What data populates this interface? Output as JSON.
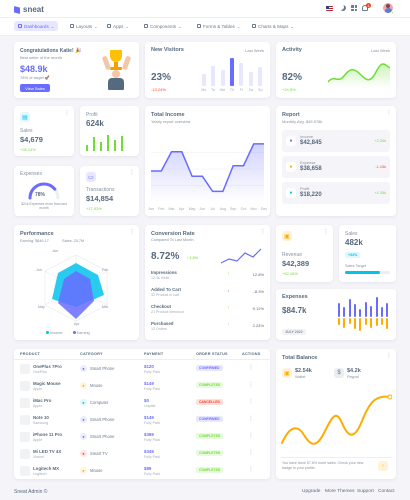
{
  "brand": {
    "name": "sneat"
  },
  "nav": {
    "menu": [
      {
        "label": "Dashboards",
        "active": true
      },
      {
        "label": "Layouts"
      },
      {
        "label": "Apps"
      },
      {
        "label": "Components"
      },
      {
        "label": "Forms & Tables"
      },
      {
        "label": "Charts & Maps"
      }
    ],
    "notification_count": "4"
  },
  "congrats": {
    "title": "Congratulations Katie! 🎉",
    "subtitle": "Best seller of the month",
    "amount": "$48.9k",
    "target": "78% of target 🚀",
    "button": "View Sales"
  },
  "new_visitors": {
    "title": "New Visitors",
    "period": "Last Week",
    "value": "23%",
    "change": "-13.24%",
    "days": [
      "Mo",
      "Tu",
      "We",
      "Th",
      "Fr",
      "Sa",
      "Su"
    ],
    "bars": [
      40,
      65,
      50,
      90,
      75,
      45,
      60
    ]
  },
  "activity": {
    "title": "Activity",
    "period": "Last Week",
    "value": "82%",
    "change": "+24.8%"
  },
  "sales_card": {
    "label": "Sales",
    "value": "$4,679",
    "change": "+28.14%"
  },
  "profit_card": {
    "label": "Profit",
    "value": "624k"
  },
  "expenses_card": {
    "label": "Expenses",
    "gauge": "78%",
    "note": "$21k Expenses more than last month",
    "gauge_fill": 0.78
  },
  "transactions_card": {
    "label": "Transactions",
    "value": "$14,854",
    "change": "+17.53%"
  },
  "total_income": {
    "title": "Total Income",
    "subtitle": "Yearly report overview",
    "months": [
      "Jan",
      "Feb",
      "Mar",
      "Apr",
      "May",
      "Jun",
      "Jul",
      "Aug",
      "Sep",
      "Oct",
      "Nov",
      "Dec"
    ],
    "values": [
      3350,
      3350,
      4800,
      4800,
      2950,
      2950,
      1800,
      1800,
      3750,
      3750,
      5400,
      5400
    ]
  },
  "report": {
    "title": "Report",
    "subtitle": "Monthly Avg. $45.578k",
    "items": [
      {
        "label": "Income",
        "value": "$42,845",
        "change": "+2.34k",
        "color": "#696cff"
      },
      {
        "label": "Expense",
        "value": "$38,658",
        "change": "-1.15k",
        "color": "#ffab00"
      },
      {
        "label": "Profit",
        "value": "$18,220",
        "change": "+1.35k",
        "color": "#03c3ec"
      }
    ]
  },
  "performance": {
    "title": "Performance",
    "earning_label": "Earning: $846.17",
    "sales_label": "Sales: 25.7M",
    "axes": [
      "Jan",
      "Feb",
      "Mar",
      "Apr",
      "May",
      "Jun"
    ],
    "legend": [
      "Income",
      "Earning"
    ]
  },
  "conversion": {
    "title": "Conversion Rate",
    "subtitle": "Compared To Last Month",
    "value": "8.72%",
    "change": "4.8%",
    "items": [
      {
        "label": "Impressions",
        "sub": "12.4k Visits",
        "change": "12.8%",
        "up": true
      },
      {
        "label": "Added To Cart",
        "sub": "32 Product in cart",
        "change": "-8.3%",
        "up": false
      },
      {
        "label": "Checkout",
        "sub": "21 Product checkout",
        "change": "9.12%",
        "up": true
      },
      {
        "label": "Purchased",
        "sub": "12 Orders",
        "change": "2.24%",
        "up": true
      }
    ]
  },
  "revenue_card": {
    "label": "Revenue",
    "value": "$42,389",
    "change": "+52.18%"
  },
  "sales_small": {
    "label": "Sales",
    "value": "482k",
    "badge": "+34%",
    "target_label": "Sales Target",
    "target_fill": 0.78
  },
  "expenses_chart": {
    "title": "Expenses",
    "value": "$84.7k",
    "badge": "JULY 2022",
    "bars": [
      {
        "up": 20,
        "down": 10
      },
      {
        "up": 14,
        "down": 14
      },
      {
        "up": 26,
        "down": 8
      },
      {
        "up": 18,
        "down": 16
      },
      {
        "up": 12,
        "down": 18
      },
      {
        "up": 22,
        "down": 10
      },
      {
        "up": 16,
        "down": 14
      },
      {
        "up": 28,
        "down": 12
      },
      {
        "up": 14,
        "down": 10
      },
      {
        "up": 20,
        "down": 16
      }
    ]
  },
  "orders_table": {
    "headers": [
      "PRODUCT",
      "CATEGORY",
      "PAYMENT",
      "ORDER STATUS",
      "ACTIONS"
    ],
    "rows": [
      {
        "name": "OnePlus 7Pro",
        "brand": "OnePlus",
        "category": "Smart Phone",
        "price": "$120",
        "paid": "Fully Paid",
        "status": "CONFIRMED"
      },
      {
        "name": "Magic Mouse",
        "brand": "Apple",
        "category": "Mouse",
        "price": "$149",
        "paid": "Fully Paid",
        "status": "COMPLETED"
      },
      {
        "name": "iMac Pro",
        "brand": "Apple",
        "category": "Computer",
        "price": "$0",
        "paid": "Unpaid",
        "status": "CANCELLED"
      },
      {
        "name": "Note 10",
        "brand": "Samsung",
        "category": "Smart Phone",
        "price": "$149",
        "paid": "Fully Paid",
        "status": "CONFIRMED"
      },
      {
        "name": "iPhone 11 Pro",
        "brand": "Apple",
        "category": "Smart Phone",
        "price": "$399",
        "paid": "Fully Paid",
        "status": "COMPLETED"
      },
      {
        "name": "Mi LED TV 4X",
        "brand": "Xiaomi",
        "category": "Smart TV",
        "price": "$349",
        "paid": "Fully Paid",
        "status": "COMPLETED"
      },
      {
        "name": "Logitech MX",
        "brand": "Logitech",
        "category": "Mouse",
        "price": "$89",
        "paid": "Fully Paid",
        "status": "COMPLETED"
      }
    ]
  },
  "total_balance": {
    "title": "Total Balance",
    "wallet_value": "$2.54k",
    "wallet_label": "Wallet",
    "paypal_value": "$4.2k",
    "paypal_label": "Paypal",
    "note": "You have done 57.6% more sales. Check your new badge in your profile."
  },
  "footer": {
    "copyright": "Sneat Admin ©",
    "links": [
      "Upgrade",
      "More Themes",
      "Support",
      "Contact"
    ]
  }
}
